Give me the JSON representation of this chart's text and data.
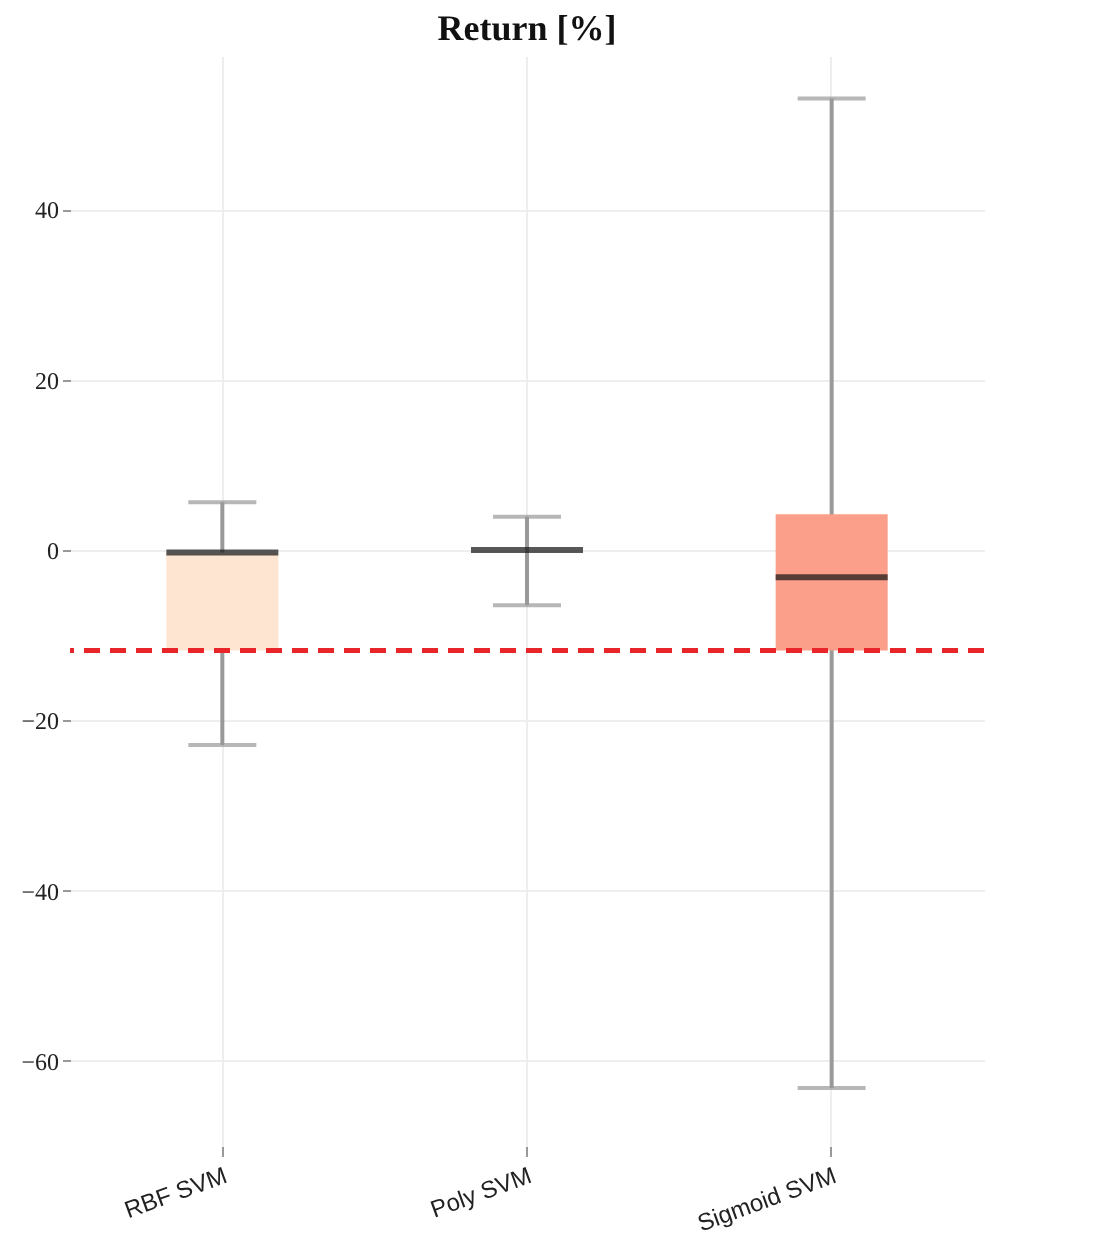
{
  "chart_data": {
    "type": "box",
    "title": "Return [%]",
    "categories": [
      "RBF SVM",
      "Poly SVM",
      "Sigmoid SVM"
    ],
    "boxes": [
      {
        "low": -22.9,
        "q1": -11.8,
        "median": -0.3,
        "q3": -0.3,
        "high": 5.6
      },
      {
        "low": -6.5,
        "q1": 0,
        "median": 0,
        "q3": 0,
        "high": 3.9
      },
      {
        "low": -63.2,
        "q1": -11.8,
        "median": -3.2,
        "q3": 4.2,
        "high": 53
      }
    ],
    "colors": [
      "#fde5d2",
      null,
      "#fb9e8a"
    ],
    "ylim": [
      -70,
      58
    ],
    "yticks": [
      -60,
      -40,
      -20,
      0,
      20,
      40
    ],
    "ref_lines": [
      {
        "axis": "y",
        "value": -11.8,
        "color": "#e8262a",
        "line_style": "dashed"
      }
    ],
    "grid": true
  }
}
